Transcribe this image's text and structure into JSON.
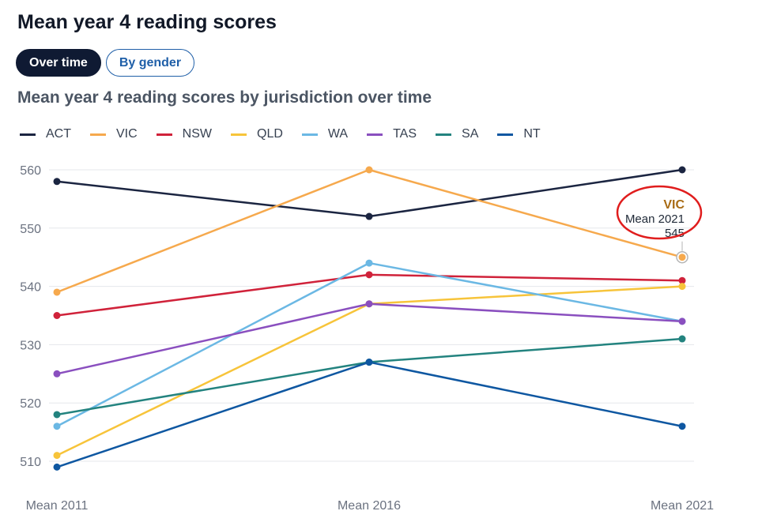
{
  "header": {
    "title": "Mean year 4 reading scores"
  },
  "tabs": [
    {
      "label": "Over time",
      "active": true
    },
    {
      "label": "By gender",
      "active": false
    }
  ],
  "chart_data": {
    "type": "line",
    "title": "Mean year 4 reading scores by jurisdiction over time",
    "categories": [
      "Mean 2011",
      "Mean 2016",
      "Mean 2021"
    ],
    "ylim": [
      507,
      563
    ],
    "yticks": [
      510,
      520,
      530,
      540,
      550,
      560
    ],
    "grid": true,
    "legend_position": "top",
    "series": [
      {
        "name": "ACT",
        "color": "#1b2541",
        "values": [
          558,
          552,
          560
        ]
      },
      {
        "name": "VIC",
        "color": "#f6a94d",
        "values": [
          539,
          560,
          545
        ]
      },
      {
        "name": "NSW",
        "color": "#d0223a",
        "values": [
          535,
          542,
          541
        ]
      },
      {
        "name": "QLD",
        "color": "#f7c43a",
        "values": [
          511,
          537,
          540
        ]
      },
      {
        "name": "WA",
        "color": "#6bb8e4",
        "values": [
          516,
          544,
          534
        ]
      },
      {
        "name": "TAS",
        "color": "#8a4fbf",
        "values": [
          525,
          537,
          534
        ]
      },
      {
        "name": "SA",
        "color": "#23837f",
        "values": [
          518,
          527,
          531
        ]
      },
      {
        "name": "NT",
        "color": "#0e57a1",
        "values": [
          509,
          527,
          516
        ]
      }
    ],
    "tooltip": {
      "series": "VIC",
      "category": "Mean 2021",
      "value": "545",
      "color": "#a86b14"
    }
  }
}
